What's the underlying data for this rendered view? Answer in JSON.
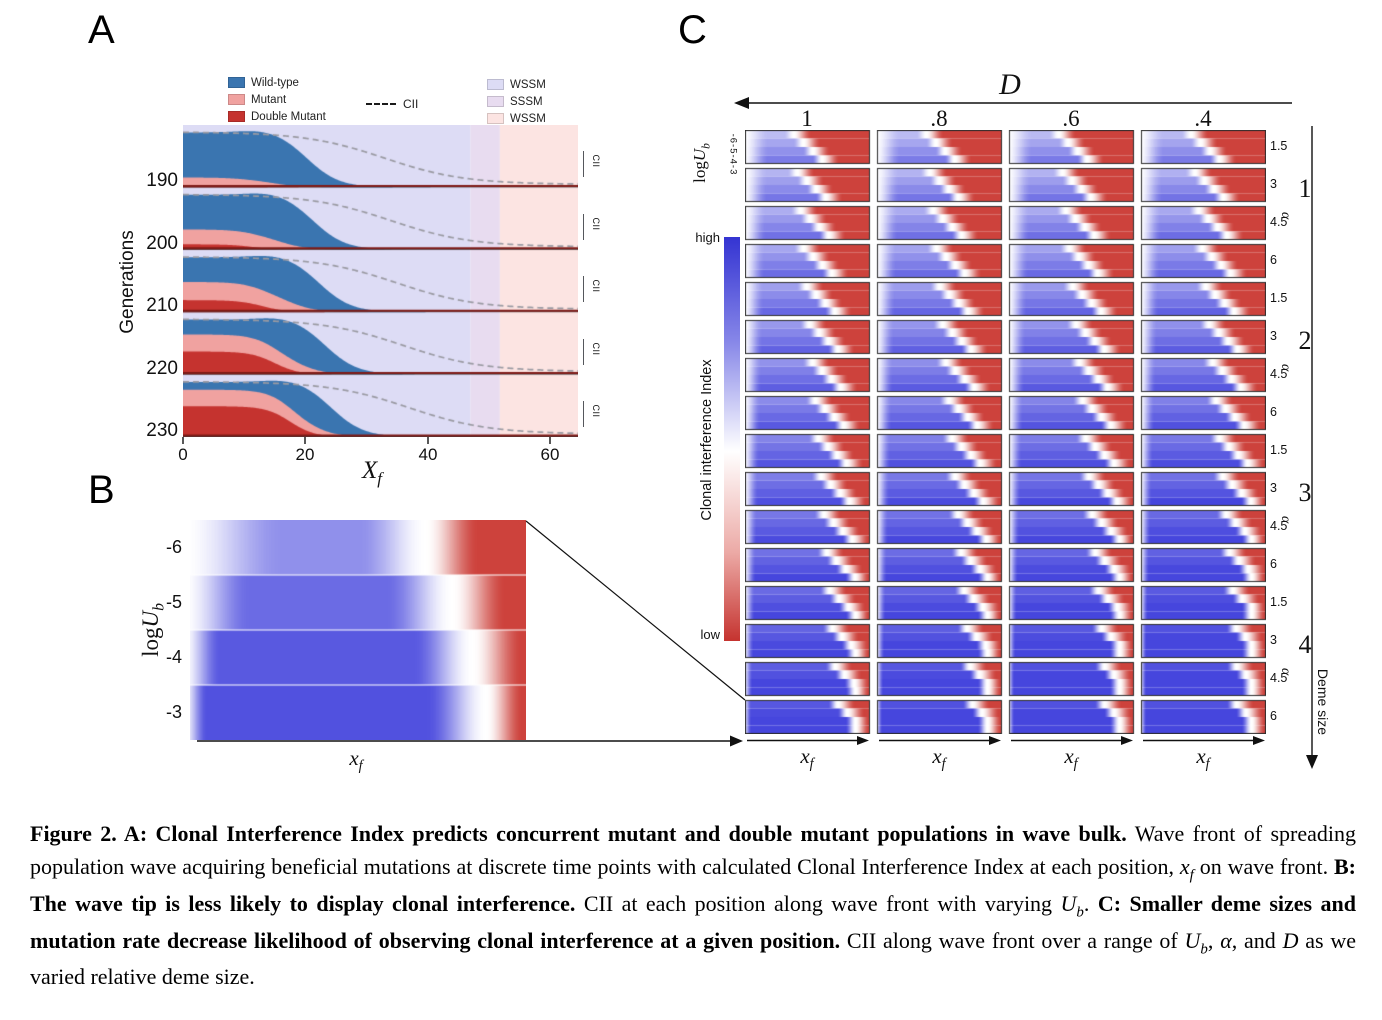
{
  "figure": {
    "title": "Figure 2",
    "panel_a": {
      "label": "A",
      "ylabel": "Generations",
      "xlabel_var": "X",
      "xlabel_sub": "f",
      "x_ticks": [
        "0",
        "20",
        "40",
        "60"
      ],
      "row_axis_label": "CII",
      "generations": [
        "190",
        "200",
        "210",
        "220",
        "230"
      ],
      "legend_populations": [
        {
          "label": "Wild-type",
          "color": "#3a75b0"
        },
        {
          "label": "Mutant",
          "color": "#f0a2a0"
        },
        {
          "label": "Double Mutant",
          "color": "#c5332f"
        }
      ],
      "legend_line": {
        "label": "CII"
      },
      "legend_regions": [
        {
          "label": "WSSM",
          "color": "#dddcf5"
        },
        {
          "label": "SSSM",
          "color": "#e8dcf0"
        },
        {
          "label": "WSSM",
          "color": "#fce4e2"
        }
      ],
      "colors": {
        "wild": "#3a75b0",
        "mutant": "#f0a2a0",
        "double": "#c5332f",
        "baseline": "#7e1a16",
        "cii_dash": "#9a9aa2"
      },
      "regions": [
        {
          "label": "WSSM",
          "from": 0,
          "to": 47,
          "color": "#dddcf5"
        },
        {
          "label": "SSSM",
          "from": 47,
          "to": 51.8,
          "color": "#e8dcf0"
        },
        {
          "label": "WSSM",
          "from": 51.8,
          "to": 64.6,
          "color": "#fce4e2"
        }
      ],
      "series": [
        {
          "generation": 190,
          "front": 20.5,
          "mutant": 0.14,
          "mutant_front": 15,
          "double": 0.04,
          "double_front": 10,
          "cii_mid": 33
        },
        {
          "generation": 200,
          "front": 21.5,
          "mutant": 0.27,
          "mutant_front": 16,
          "double": 0.1,
          "double_front": 11.5,
          "cii_mid": 34
        },
        {
          "generation": 210,
          "front": 22.5,
          "mutant": 0.33,
          "mutant_front": 17.5,
          "double": 0.22,
          "double_front": 13,
          "cii_mid": 35
        },
        {
          "generation": 220,
          "front": 23.5,
          "mutant": 0.31,
          "mutant_front": 19,
          "double": 0.42,
          "double_front": 15,
          "cii_mid": 36
        },
        {
          "generation": 230,
          "front": 24.5,
          "mutant": 0.3,
          "mutant_front": 21,
          "double": 0.56,
          "double_front": 17.5,
          "cii_mid": 37
        }
      ]
    },
    "panel_b": {
      "label": "B",
      "ylabel_pre": "log",
      "ylabel_var": "U",
      "ylabel_sub": "b",
      "xlabel_var": "x",
      "xlabel_sub": "f",
      "y_ticks": [
        "-6",
        "-5",
        "-4",
        "-3"
      ],
      "colors": {
        "blue": "#4646dd",
        "red": "#cb3a34"
      },
      "bands": [
        {
          "logub": "-6",
          "amp": 0.6,
          "left_ramp": 0.3,
          "blue_end": 0.5,
          "red_start": 0.7
        },
        {
          "logub": "-5",
          "amp": 0.8,
          "left_ramp": 0.2,
          "blue_end": 0.58,
          "red_start": 0.78
        },
        {
          "logub": "-4",
          "amp": 0.9,
          "left_ramp": 0.11,
          "blue_end": 0.66,
          "red_start": 0.84
        },
        {
          "logub": "-3",
          "amp": 0.94,
          "left_ramp": 0.07,
          "blue_end": 0.7,
          "red_start": 0.88
        }
      ]
    },
    "panel_c": {
      "label": "C",
      "top_axis_label": "D",
      "d_ticks": [
        "1",
        ".8",
        ".6",
        ".4"
      ],
      "ylabel_pre": "log",
      "ylabel_var": "U",
      "ylabel_sub": "b",
      "y_tick_text": "-6-5-4-3",
      "colorbar": {
        "title": "Clonal interference Index",
        "high": "high",
        "low": "low",
        "top_color": "#3434d2",
        "bottom_color": "#c5332f"
      },
      "deme_ticks": [
        "1.5",
        "3",
        "4.5",
        "6"
      ],
      "alpha_symbol": "α",
      "alpha_groups": [
        "1",
        "2",
        "3",
        "4"
      ],
      "right_axis_label": "Deme size",
      "xlabel_var": "x",
      "xlabel_sub": "f",
      "grid": {
        "columns": 4,
        "rows": 16,
        "bands_per_cell": 4
      }
    },
    "caption": {
      "segments": [
        {
          "t": "Figure 2.",
          "b": true
        },
        {
          "t": "  A: Clonal Interference Index predicts concurrent mutant and double mutant populations in wave bulk.",
          "b": true
        },
        {
          "t": " Wave front of spreading population wave acquiring beneficial mutations at discrete time points with calculated Clonal Interference Index at each position, "
        },
        {
          "t": "x",
          "i": true
        },
        {
          "t": "f",
          "i": true,
          "sub": true
        },
        {
          "t": " on wave front. "
        },
        {
          "t": "B: The wave tip is less likely to display clonal interference.",
          "b": true
        },
        {
          "t": " CII at each position along wave front with varying "
        },
        {
          "t": "U",
          "i": true
        },
        {
          "t": "b",
          "i": true,
          "sub": true
        },
        {
          "t": ". "
        },
        {
          "t": "C: Smaller deme sizes and mutation rate decrease likelihood of observing clonal interference at a given position.",
          "b": true
        },
        {
          "t": " CII along wave front over a range of "
        },
        {
          "t": "U",
          "i": true
        },
        {
          "t": "b",
          "i": true,
          "sub": true
        },
        {
          "t": ", "
        },
        {
          "t": "α",
          "i": true
        },
        {
          "t": ", and "
        },
        {
          "t": "D",
          "i": true
        },
        {
          "t": " as we varied relative deme size."
        }
      ]
    }
  }
}
